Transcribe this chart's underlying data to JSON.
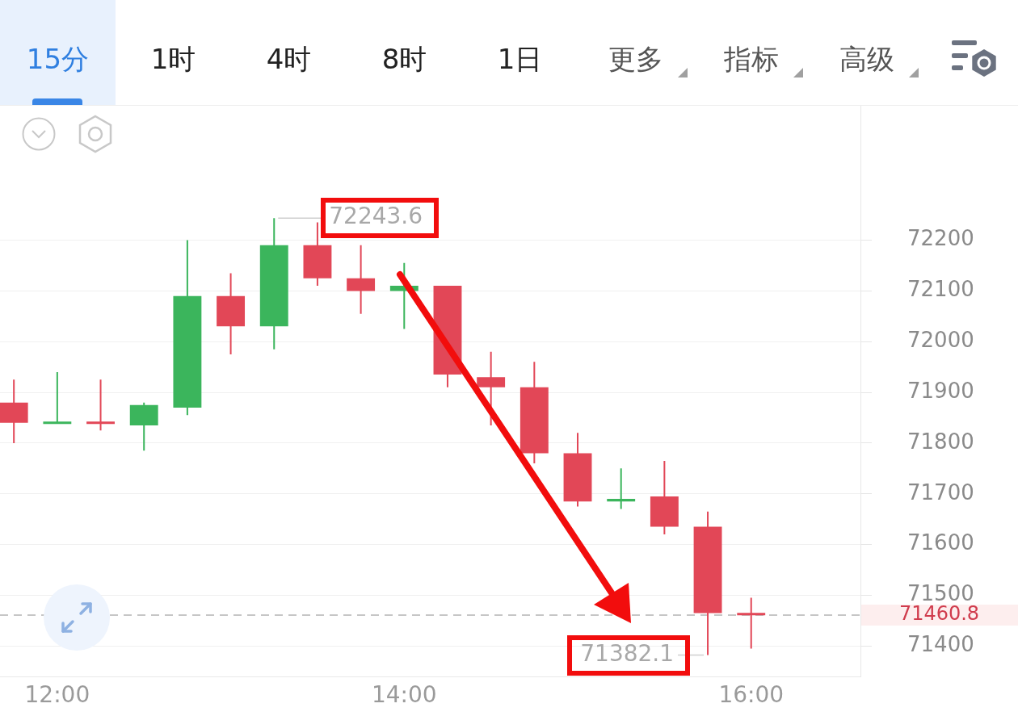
{
  "chart_data": {
    "type": "candlestick",
    "x": [
      11.75,
      12,
      12.25,
      12.5,
      12.75,
      13,
      13.25,
      13.5,
      13.75,
      14,
      14.25,
      14.5,
      14.75,
      15,
      15.25,
      15.5,
      15.75,
      16
    ],
    "ohlc": [
      [
        71880,
        71925,
        71800,
        71840
      ],
      [
        71840,
        71940,
        71840,
        71840
      ],
      [
        71840,
        71925,
        71825,
        71840
      ],
      [
        71835,
        71880,
        71785,
        71875
      ],
      [
        71870,
        72200,
        71855,
        72090
      ],
      [
        72090,
        72135,
        71975,
        72030
      ],
      [
        72030,
        72243.6,
        71985,
        72190
      ],
      [
        72190,
        72235,
        72110,
        72125
      ],
      [
        72125,
        72190,
        72055,
        72100
      ],
      [
        72100,
        72155,
        72025,
        72110
      ],
      [
        72110,
        72110,
        71910,
        71935
      ],
      [
        71930,
        71980,
        71835,
        71910
      ],
      [
        71910,
        71960,
        71760,
        71780
      ],
      [
        71780,
        71820,
        71675,
        71685
      ],
      [
        71685,
        71750,
        71670,
        71690
      ],
      [
        71695,
        71765,
        71620,
        71635
      ],
      [
        71635,
        71665,
        71382.1,
        71465
      ],
      [
        71465,
        71495,
        71395,
        71460.8
      ]
    ],
    "colors": [
      "#e24757",
      "#3bb55c",
      "#e24757",
      "#3bb55c",
      "#3bb55c",
      "#e24757",
      "#3bb55c",
      "#e24757",
      "#e24757",
      "#3bb55c",
      "#e24757",
      "#e24757",
      "#e24757",
      "#e24757",
      "#3bb55c",
      "#e24757",
      "#e24757",
      "#e24757"
    ],
    "xlim": [
      11.67,
      16.63
    ],
    "xticks": [
      {
        "value": 12,
        "label": "12:00"
      },
      {
        "value": 14,
        "label": "14:00"
      },
      {
        "value": 16,
        "label": "16:00"
      }
    ],
    "ylim": [
      71340,
      72465
    ],
    "yticks": [
      71400,
      71500,
      71600,
      71700,
      71800,
      71900,
      72000,
      72100,
      72200
    ],
    "grid": "y",
    "ref_lines": [
      {
        "axis": "y",
        "value": 71460.8,
        "label": "71460.8",
        "color": "#b4b4b4",
        "line_style": "dashed"
      }
    ],
    "annotations": [
      "15分",
      "1时",
      "4时",
      "8时",
      "1日",
      "更多",
      "指标",
      "高级",
      {
        "text": "72243.6",
        "x": 13.25,
        "y": 72243.6
      },
      {
        "text": "71382.1",
        "x": 15.75,
        "y": 71382.1
      }
    ]
  }
}
